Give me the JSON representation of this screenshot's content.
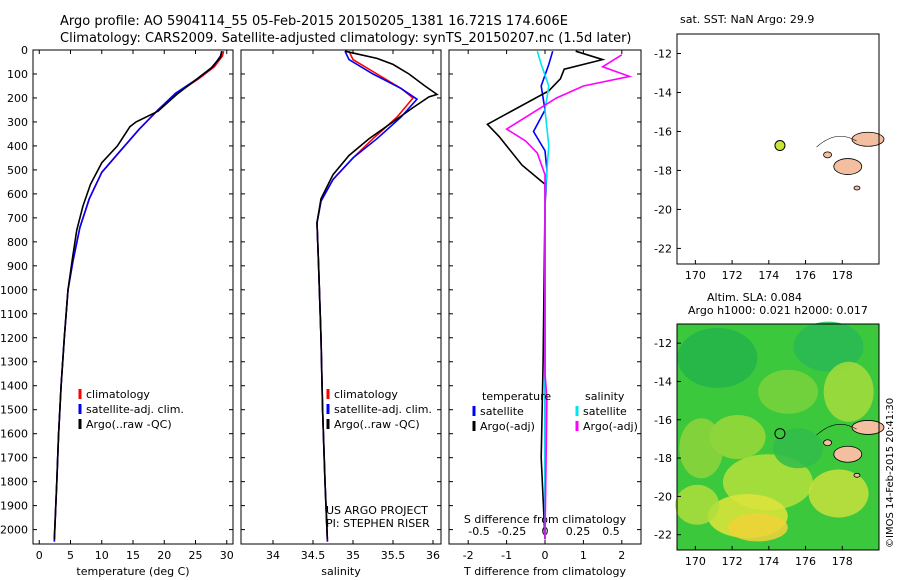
{
  "header": {
    "line1": "Argo profile: AO 5904114_55 05-Feb-2015 20150205_1381 16.721S 174.606E",
    "line2": "Climatology: CARS2009. Satellite-adjusted climatology: synTS_20150207.nc (1.5d later)"
  },
  "colors": {
    "climatology": "#ff0000",
    "satellite": "#0000ff",
    "argo": "#000000",
    "sal_satellite": "#00e5ee",
    "sal_argo": "#ff00ff",
    "land": "#f4bfa0",
    "dot": "#c8e632"
  },
  "chart_data": [
    {
      "type": "line",
      "xlabel": "temperature (deg C)",
      "xlim": [
        -1,
        31
      ],
      "xticks": [
        0,
        5,
        10,
        15,
        20,
        25,
        30
      ],
      "ylim": [
        0,
        2060
      ],
      "yticks": [
        0,
        100,
        200,
        300,
        400,
        500,
        600,
        700,
        800,
        900,
        1000,
        1100,
        1200,
        1300,
        1400,
        1500,
        1600,
        1700,
        1800,
        1900,
        2000
      ],
      "legend": [
        "climatology",
        "satellite-adj. clim.",
        "Argo(..raw -QC)"
      ],
      "series": [
        {
          "name": "climatology",
          "color": "#ff0000",
          "points": [
            [
              29.5,
              5
            ],
            [
              29.3,
              25
            ],
            [
              28,
              70
            ],
            [
              25.5,
              120
            ],
            [
              22,
              180
            ],
            [
              19,
              250
            ],
            [
              16,
              330
            ],
            [
              13,
              420
            ],
            [
              10,
              510
            ],
            [
              8,
              620
            ],
            [
              6.5,
              740
            ],
            [
              5.4,
              880
            ],
            [
              4.6,
              1000
            ],
            [
              4.0,
              1200
            ],
            [
              3.5,
              1400
            ],
            [
              3.1,
              1600
            ],
            [
              2.8,
              1800
            ],
            [
              2.4,
              2050
            ]
          ]
        },
        {
          "name": "satellite-adj. clim.",
          "color": "#0000ff",
          "points": [
            [
              29.2,
              5
            ],
            [
              29,
              25
            ],
            [
              27.8,
              70
            ],
            [
              25.3,
              120
            ],
            [
              21.8,
              180
            ],
            [
              19,
              250
            ],
            [
              16,
              330
            ],
            [
              13,
              420
            ],
            [
              10,
              510
            ],
            [
              8,
              620
            ],
            [
              6.5,
              740
            ],
            [
              5.4,
              880
            ],
            [
              4.6,
              1000
            ],
            [
              4.0,
              1200
            ],
            [
              3.5,
              1400
            ],
            [
              3.1,
              1600
            ],
            [
              2.8,
              1800
            ],
            [
              2.4,
              2050
            ]
          ]
        },
        {
          "name": "Argo(..raw -QC)",
          "color": "#000000",
          "points": [
            [
              29.2,
              5
            ],
            [
              29,
              30
            ],
            [
              27.5,
              75
            ],
            [
              25,
              125
            ],
            [
              22,
              185
            ],
            [
              19,
              255
            ],
            [
              15.5,
              300
            ],
            [
              14.5,
              320
            ],
            [
              12.5,
              400
            ],
            [
              10,
              470
            ],
            [
              8.2,
              560
            ],
            [
              7,
              650
            ],
            [
              6,
              750
            ],
            [
              5.3,
              870
            ],
            [
              4.6,
              1000
            ],
            [
              4.0,
              1200
            ],
            [
              3.5,
              1400
            ],
            [
              3.1,
              1600
            ],
            [
              2.8,
              1800
            ],
            [
              2.4,
              2040
            ]
          ]
        }
      ]
    },
    {
      "type": "line",
      "xlabel": "salinity",
      "xlim": [
        33.6,
        36.1
      ],
      "xticks": [
        34,
        34.5,
        35,
        35.5,
        36
      ],
      "ylim": [
        0,
        2060
      ],
      "legend": [
        "climatology",
        "satellite-adj. clim.",
        "Argo(..raw -QC)"
      ],
      "series": [
        {
          "name": "climatology",
          "color": "#ff0000",
          "points": [
            [
              34.95,
              5
            ],
            [
              35.0,
              40
            ],
            [
              35.3,
              100
            ],
            [
              35.6,
              160
            ],
            [
              35.75,
              200
            ],
            [
              35.55,
              280
            ],
            [
              35.25,
              370
            ],
            [
              35.0,
              450
            ],
            [
              34.75,
              540
            ],
            [
              34.6,
              630
            ],
            [
              34.55,
              720
            ],
            [
              34.57,
              900
            ],
            [
              34.6,
              1200
            ],
            [
              34.62,
              1500
            ],
            [
              34.65,
              1800
            ],
            [
              34.68,
              2050
            ]
          ]
        },
        {
          "name": "satellite-adj. clim.",
          "color": "#0000ff",
          "points": [
            [
              34.9,
              5
            ],
            [
              34.95,
              40
            ],
            [
              35.25,
              100
            ],
            [
              35.6,
              160
            ],
            [
              35.8,
              205
            ],
            [
              35.6,
              280
            ],
            [
              35.3,
              370
            ],
            [
              35.0,
              450
            ],
            [
              34.75,
              540
            ],
            [
              34.6,
              630
            ],
            [
              34.55,
              720
            ],
            [
              34.57,
              900
            ],
            [
              34.6,
              1200
            ],
            [
              34.62,
              1500
            ],
            [
              34.65,
              1800
            ],
            [
              34.68,
              2050
            ]
          ]
        },
        {
          "name": "Argo(..raw -QC)",
          "color": "#000000",
          "points": [
            [
              34.9,
              5
            ],
            [
              35.1,
              20
            ],
            [
              35.3,
              35
            ],
            [
              35.5,
              60
            ],
            [
              35.7,
              100
            ],
            [
              35.9,
              150
            ],
            [
              36.05,
              185
            ],
            [
              35.95,
              195
            ],
            [
              35.75,
              240
            ],
            [
              35.5,
              300
            ],
            [
              35.2,
              370
            ],
            [
              34.95,
              440
            ],
            [
              34.75,
              520
            ],
            [
              34.6,
              620
            ],
            [
              34.55,
              720
            ],
            [
              34.57,
              900
            ],
            [
              34.6,
              1200
            ],
            [
              34.62,
              1500
            ],
            [
              34.65,
              1800
            ],
            [
              34.68,
              2040
            ]
          ]
        }
      ]
    },
    {
      "type": "line",
      "xlabel": "T difference from climatology",
      "xlabel_top": "S difference from climatology",
      "xlim": [
        -2.5,
        2.5
      ],
      "xticks": [
        -2,
        -1,
        0,
        1,
        2
      ],
      "xticks_top": [
        -0.5,
        -0.25,
        0,
        0.25,
        0.5
      ],
      "ylim": [
        0,
        2060
      ],
      "legend_titles": [
        "temperature",
        "salinity"
      ],
      "legend": [
        "satellite",
        "Argo(-adj)",
        "satellite",
        "Argo(-adj)"
      ],
      "series": [
        {
          "name": "satellite",
          "group": "temperature",
          "color": "#0000ff",
          "points": [
            [
              0.2,
              5
            ],
            [
              0.1,
              60
            ],
            [
              -0.1,
              150
            ],
            [
              0.0,
              250
            ],
            [
              -0.3,
              340
            ],
            [
              0.0,
              420
            ],
            [
              0.05,
              500
            ],
            [
              0.0,
              650
            ],
            [
              0.0,
              2040
            ]
          ]
        },
        {
          "name": "Argo(-adj)",
          "group": "temperature",
          "color": "#000000",
          "points": [
            [
              0.8,
              5
            ],
            [
              1.5,
              40
            ],
            [
              0.5,
              80
            ],
            [
              0.4,
              120
            ],
            [
              0.1,
              170
            ],
            [
              -1.5,
              310
            ],
            [
              -1.2,
              360
            ],
            [
              -1.0,
              400
            ],
            [
              -0.6,
              480
            ],
            [
              0.0,
              560
            ],
            [
              0.0,
              650
            ],
            [
              -0.05,
              1300
            ],
            [
              -0.1,
              1700
            ],
            [
              0.0,
              2040
            ]
          ]
        },
        {
          "name": "satellite",
          "group": "salinity",
          "color": "#00e5ee",
          "points": [
            [
              -0.2,
              5
            ],
            [
              -0.1,
              60
            ],
            [
              0.1,
              150
            ],
            [
              0.0,
              250
            ],
            [
              0.1,
              400
            ],
            [
              0.0,
              600
            ],
            [
              0.0,
              2040
            ]
          ]
        },
        {
          "name": "Argo(-adj)",
          "group": "salinity",
          "color": "#ff00ff",
          "points": [
            [
              2.0,
              20
            ],
            [
              1.5,
              70
            ],
            [
              2.2,
              110
            ],
            [
              1.0,
              150
            ],
            [
              0.3,
              200
            ],
            [
              -1.0,
              330
            ],
            [
              -0.5,
              380
            ],
            [
              -0.2,
              430
            ],
            [
              0.0,
              520
            ],
            [
              0.0,
              650
            ],
            [
              0.0,
              1350
            ],
            [
              0.05,
              1450
            ],
            [
              0.0,
              2040
            ]
          ]
        }
      ]
    }
  ],
  "footer_note": {
    "line1": "US ARGO PROJECT",
    "line2": "PI: STEPHEN RISER"
  },
  "map_top": {
    "title": "sat. SST: NaN Argo: 29.9",
    "xticks": [
      170,
      172,
      174,
      176,
      178
    ],
    "yticks": [
      -12,
      -14,
      -16,
      -18,
      -20,
      -22
    ],
    "xlim": [
      169,
      180
    ],
    "ylim": [
      -22.8,
      -11
    ],
    "argo_pos": {
      "lon": 174.606,
      "lat": -16.721
    }
  },
  "map_bottom": {
    "title_line1": "Altim. SLA: 0.084",
    "title_line2": "Argo h1000: 0.021 h2000: 0.017",
    "xticks": [
      170,
      172,
      174,
      176,
      178
    ],
    "yticks": [
      -12,
      -14,
      -16,
      -18,
      -20,
      -22
    ],
    "xlim": [
      169,
      180
    ],
    "ylim": [
      -22.8,
      -11
    ],
    "argo_pos": {
      "lon": 174.606,
      "lat": -16.721
    }
  },
  "side_stamp": "©IMOS 14-Feb-2015 20:41:30"
}
